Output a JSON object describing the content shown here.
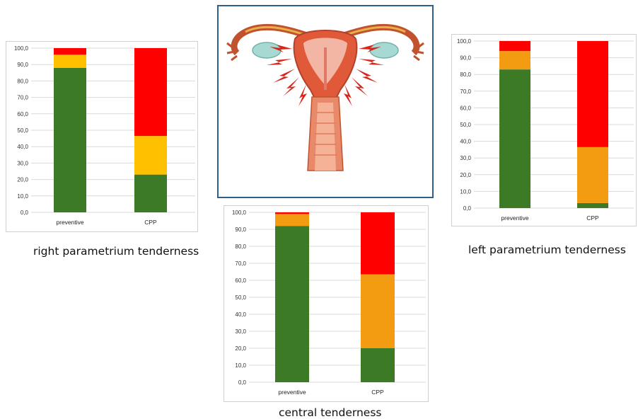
{
  "colors": {
    "green": "#3c7a26",
    "orange_right": "#ffc000",
    "orange": "#f39c12",
    "red": "#ff0000",
    "grid": "#d9d9d9",
    "frame": "#2f5f86"
  },
  "illustration": {
    "icon": "uterus-anatomy-illustration"
  },
  "chart_data": [
    {
      "type": "bar",
      "stacked": true,
      "caption": "right parametrium tenderness",
      "categories": [
        "preventive",
        "CPP"
      ],
      "ylim": [
        0,
        100
      ],
      "yticks": [
        "0,0",
        "10,0",
        "20,0",
        "30,0",
        "40,0",
        "50,0",
        "60,0",
        "70,0",
        "80,0",
        "90,0",
        "100,0"
      ],
      "grid": true,
      "series": [
        {
          "values": [
            88,
            23
          ],
          "color": "#3c7a26"
        },
        {
          "values": [
            8,
            23.5
          ],
          "color": "#ffc000"
        },
        {
          "values": [
            4,
            53.5
          ],
          "color": "#ff0000"
        }
      ]
    },
    {
      "type": "bar",
      "stacked": true,
      "caption": "central tenderness",
      "categories": [
        "preventive",
        "CPP"
      ],
      "ylim": [
        0,
        100
      ],
      "yticks": [
        "0,0",
        "10,0",
        "20,0",
        "30,0",
        "40,0",
        "50,0",
        "60,0",
        "70,0",
        "80,0",
        "90,0",
        "100,0"
      ],
      "grid": true,
      "series": [
        {
          "values": [
            92,
            20
          ],
          "color": "#3c7a26"
        },
        {
          "values": [
            7,
            43.5
          ],
          "color": "#f39c12"
        },
        {
          "values": [
            1,
            36.5
          ],
          "color": "#ff0000"
        }
      ]
    },
    {
      "type": "bar",
      "stacked": true,
      "caption": "left parametrium tenderness",
      "categories": [
        "preventive",
        "CPP"
      ],
      "ylim": [
        0,
        100
      ],
      "yticks": [
        "0,0",
        "10,0",
        "20,0",
        "30,0",
        "40,0",
        "50,0",
        "60,0",
        "70,0",
        "80,0",
        "90,0",
        "100,0"
      ],
      "grid": true,
      "series": [
        {
          "values": [
            83,
            3
          ],
          "color": "#3c7a26"
        },
        {
          "values": [
            11,
            33.5
          ],
          "color": "#f39c12"
        },
        {
          "values": [
            6,
            63.5
          ],
          "color": "#ff0000"
        }
      ]
    }
  ]
}
